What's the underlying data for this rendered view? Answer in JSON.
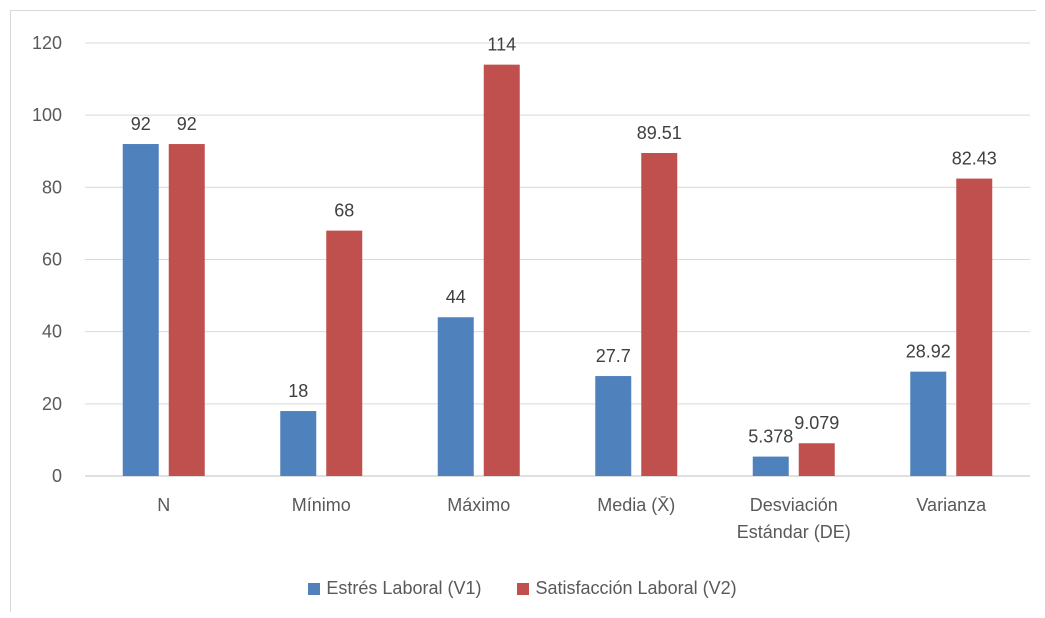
{
  "chart_data": {
    "type": "bar",
    "title": "",
    "xlabel": "",
    "ylabel": "",
    "categories": [
      [
        "N"
      ],
      [
        "Mínimo"
      ],
      [
        "Máximo"
      ],
      [
        "Media (X̄)"
      ],
      [
        "Desviación",
        "Estándar (DE)"
      ],
      [
        "Varianza"
      ]
    ],
    "series": [
      {
        "name": "Estrés Laboral (V1)",
        "color": "#4f81bd",
        "values": [
          92,
          18,
          44,
          27.7,
          5.378,
          28.92
        ],
        "labels": [
          "92",
          "18",
          "44",
          "27.7",
          "5.378",
          "28.92"
        ]
      },
      {
        "name": "Satisfacción Laboral (V2)",
        "color": "#c0504d",
        "values": [
          92,
          68,
          114,
          89.51,
          9.079,
          82.43
        ],
        "labels": [
          "92",
          "68",
          "114",
          "89.51",
          "9.079",
          "82.43"
        ]
      }
    ],
    "ylim": [
      0,
      120
    ],
    "yticks": [
      0,
      20,
      40,
      60,
      80,
      100,
      120
    ],
    "grid": true,
    "legend_position": "bottom"
  }
}
